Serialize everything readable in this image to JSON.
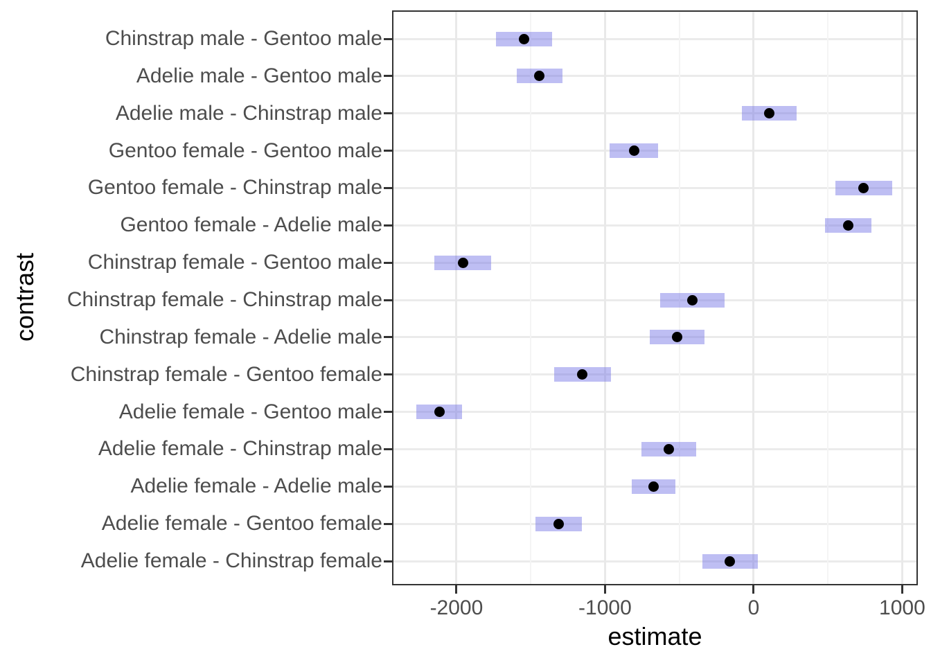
{
  "chart_data": {
    "type": "scatter",
    "subtype": "point-interval (pairwise contrasts, horizontal CI bars)",
    "title": "",
    "xlabel": "estimate",
    "ylabel": "contrast",
    "xlim": [
      -2424,
      1096
    ],
    "x_major_ticks": [
      -2000,
      -1000,
      0,
      1000
    ],
    "x_major_tick_labels": [
      "-2000",
      "-1000",
      "0",
      "1000"
    ],
    "x_minor_gridlines": [
      -1500,
      -500,
      500
    ],
    "grid": "on",
    "legend_position": "none",
    "categories_top_to_bottom": [
      "Chinstrap male - Gentoo male",
      "Adelie male - Gentoo male",
      "Adelie male - Chinstrap male",
      "Gentoo female - Gentoo male",
      "Gentoo female - Chinstrap male",
      "Gentoo female - Adelie male",
      "Chinstrap female - Gentoo male",
      "Chinstrap female - Chinstrap male",
      "Chinstrap female - Adelie male",
      "Chinstrap female - Gentoo female",
      "Adelie female - Gentoo male",
      "Adelie female - Chinstrap male",
      "Adelie female - Adelie male",
      "Adelie female - Gentoo female",
      "Adelie female - Chinstrap female"
    ],
    "series": [
      {
        "name": "estimate",
        "values": [
          -1545.9,
          -1441.3,
          104.5,
          -805.1,
          740.8,
          636.3,
          -1957.6,
          -411.8,
          -516.3,
          -1152.5,
          -2116.0,
          -570.1,
          -674.7,
          -1310.9,
          -158.4
        ]
      },
      {
        "name": "ci_lower",
        "values": [
          -1736.1,
          -1595.6,
          -80.1,
          -968.1,
          548.8,
          479.9,
          -2147.8,
          -627.4,
          -700.9,
          -1344.5,
          -2270.2,
          -754.7,
          -821.8,
          -1467.3,
          -343.0
        ]
      },
      {
        "name": "ci_upper",
        "values": [
          -1355.6,
          -1287.1,
          289.1,
          -642.1,
          932.8,
          792.6,
          -1767.4,
          -196.2,
          -331.7,
          -960.5,
          -1961.8,
          -385.5,
          -527.6,
          -1154.5,
          26.2
        ]
      }
    ],
    "colors": {
      "interval_bar": "rgba(110,110,228,0.45)",
      "interval_bar_on_white": "#bdbdf3",
      "point": "#000000",
      "panel_border": "#333333",
      "axis_text": "#4d4d4d",
      "axis_title": "#000000",
      "grid_major": "#ebebeb",
      "grid_minor": "#f4f4f4",
      "background": "#ffffff"
    }
  }
}
